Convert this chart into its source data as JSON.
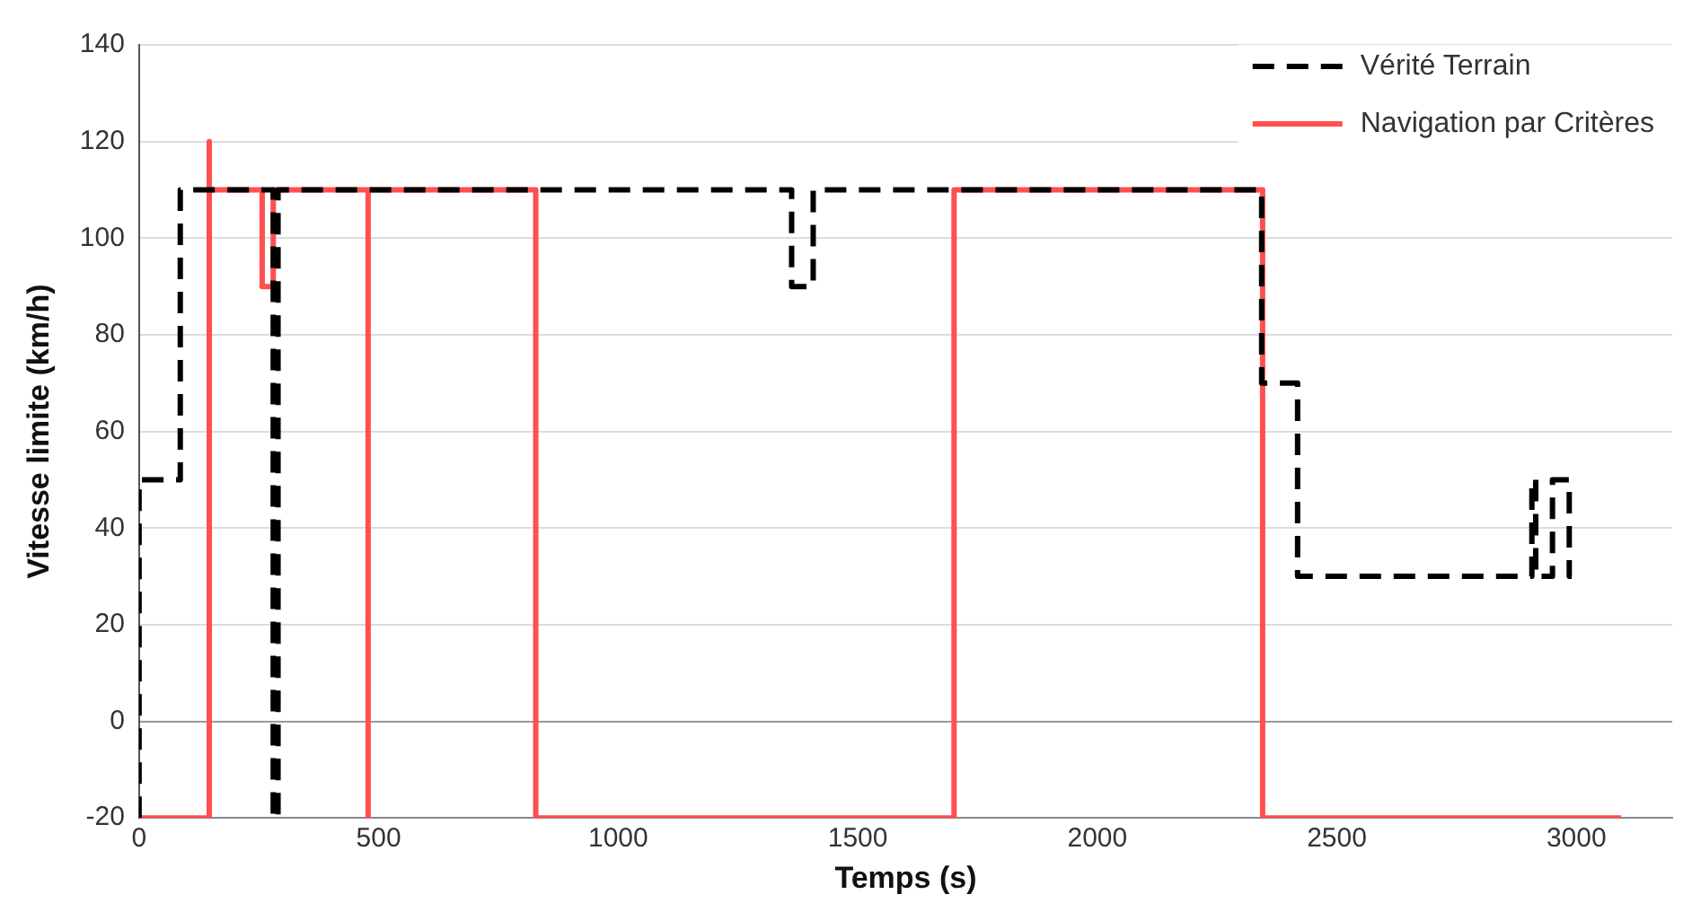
{
  "chart_data": {
    "type": "line",
    "xlabel": "Temps (s)",
    "ylabel": "Vitesse limite (km/h)",
    "xlim": [
      0,
      3200
    ],
    "xticks": [
      0,
      500,
      1000,
      1500,
      2000,
      2500,
      3000
    ],
    "ylim": [
      -20,
      140
    ],
    "yticks": [
      -20,
      0,
      20,
      40,
      60,
      80,
      100,
      120,
      140
    ],
    "grid": "y",
    "legend": "top right",
    "marker": "none",
    "series": [
      {
        "name": "Vérité Terrain",
        "color": "#000000",
        "line_style": "dashed",
        "x": [
          0,
          0,
          20,
          20,
          86,
          86,
          280,
          280,
          290,
          290,
          1362,
          1362,
          1407,
          1407,
          2343,
          2343,
          2418,
          2418,
          2907,
          2907,
          2915,
          2915,
          2950,
          2950,
          2985,
          2985,
          2990
        ],
        "values": [
          -20,
          50,
          50,
          50,
          50,
          110,
          110,
          -20,
          -20,
          110,
          110,
          90,
          90,
          110,
          110,
          70,
          70,
          30,
          30,
          50,
          50,
          30,
          30,
          50,
          50,
          30,
          30
        ]
      },
      {
        "name": "Navigation par Critères",
        "color": "#ff4f4f",
        "line_style": "solid",
        "x": [
          0,
          145,
          145,
          148,
          257,
          257,
          280,
          280,
          478,
          478,
          478,
          828,
          828,
          1701,
          1701,
          2345,
          2345,
          3093
        ],
        "values": [
          -20,
          -20,
          120,
          110,
          110,
          90,
          90,
          110,
          110,
          -20,
          110,
          110,
          -20,
          -20,
          110,
          110,
          -20,
          -20
        ]
      }
    ]
  }
}
